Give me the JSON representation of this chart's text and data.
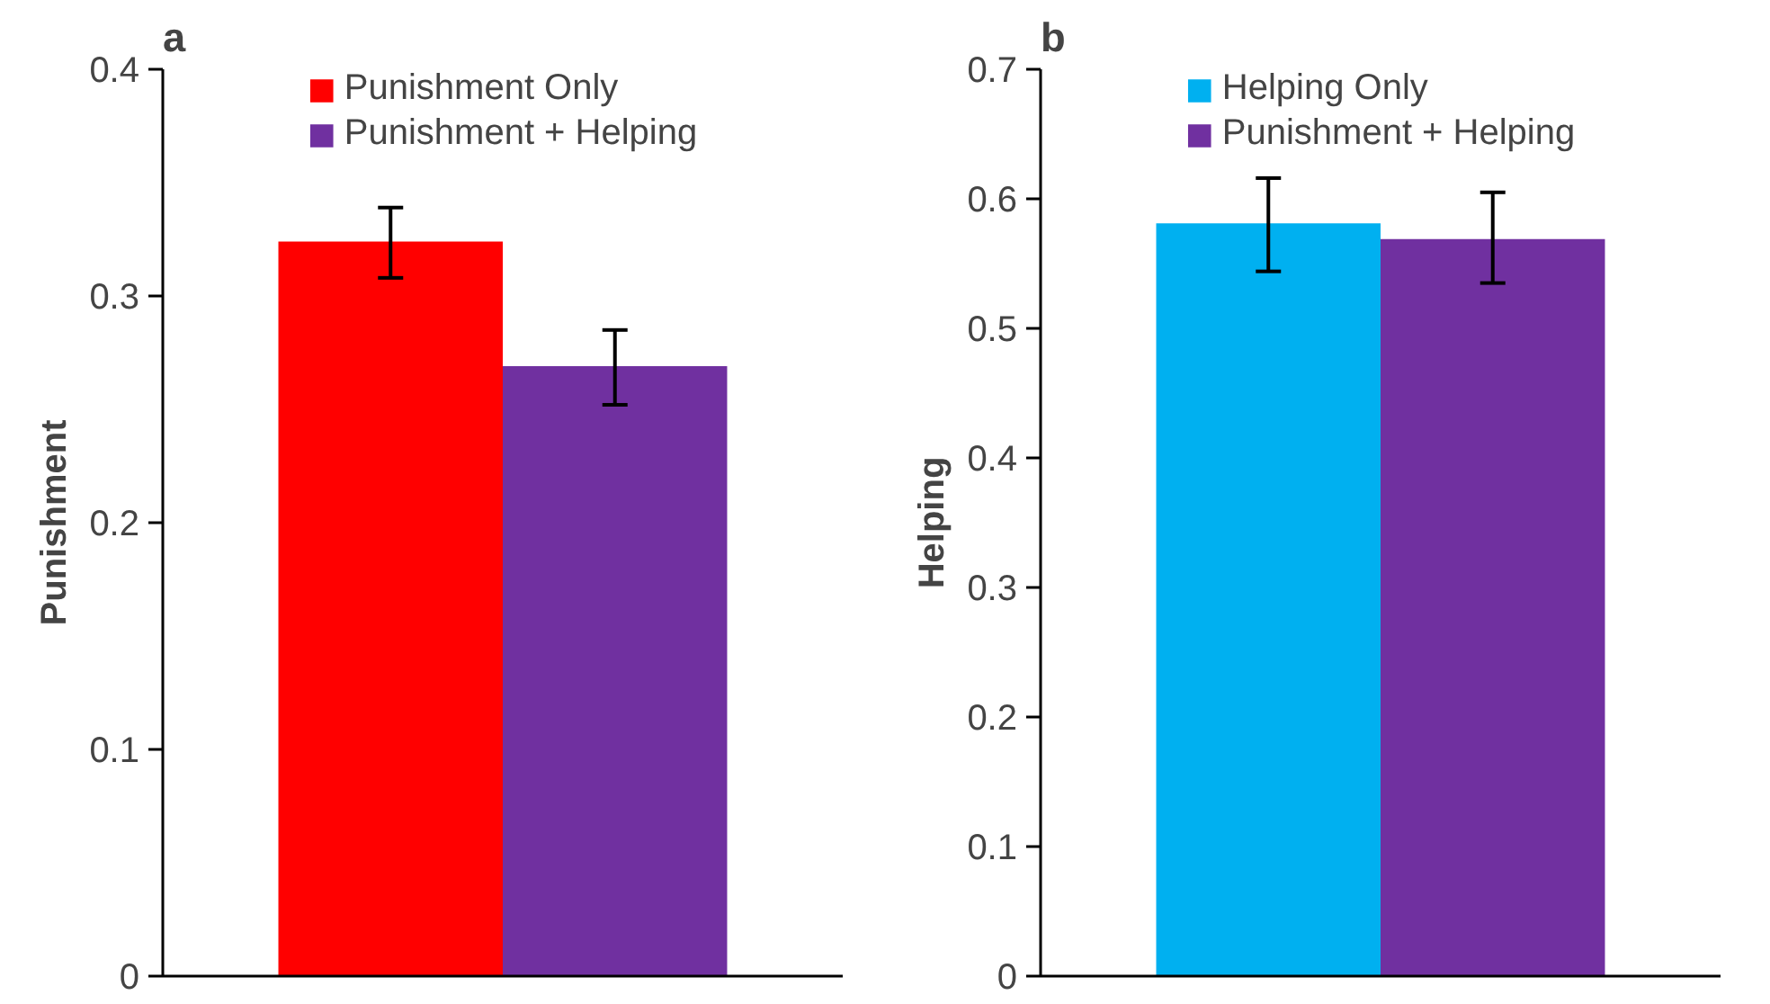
{
  "chart_data": [
    {
      "type": "bar",
      "title": "a",
      "ylabel": "Punishment",
      "categories": [
        null
      ],
      "ylim": [
        0,
        0.4
      ],
      "yticks": [
        0,
        0.1,
        0.2,
        0.3,
        0.4
      ],
      "grid": false,
      "legend": "top",
      "series": [
        {
          "name": "Punishment Only",
          "color": "#ff0000",
          "values": [
            0.324
          ],
          "errors": [
            [
              0.308,
              0.339
            ]
          ]
        },
        {
          "name": "Punishment + Helping",
          "color": "#7030a0",
          "values": [
            0.269
          ],
          "errors": [
            [
              0.252,
              0.285
            ]
          ]
        }
      ]
    },
    {
      "type": "bar",
      "title": "b",
      "ylabel": "Helping",
      "categories": [
        null
      ],
      "ylim": [
        0,
        0.7
      ],
      "yticks": [
        0,
        0.1,
        0.2,
        0.3,
        0.4,
        0.5,
        0.6,
        0.7
      ],
      "grid": false,
      "legend": "top",
      "series": [
        {
          "name": "Helping Only",
          "color": "#00b0f0",
          "values": [
            0.581
          ],
          "errors": [
            [
              0.544,
              0.616
            ]
          ]
        },
        {
          "name": "Punishment + Helping",
          "color": "#7030a0",
          "values": [
            0.569
          ],
          "errors": [
            [
              0.535,
              0.605
            ]
          ]
        }
      ]
    }
  ]
}
